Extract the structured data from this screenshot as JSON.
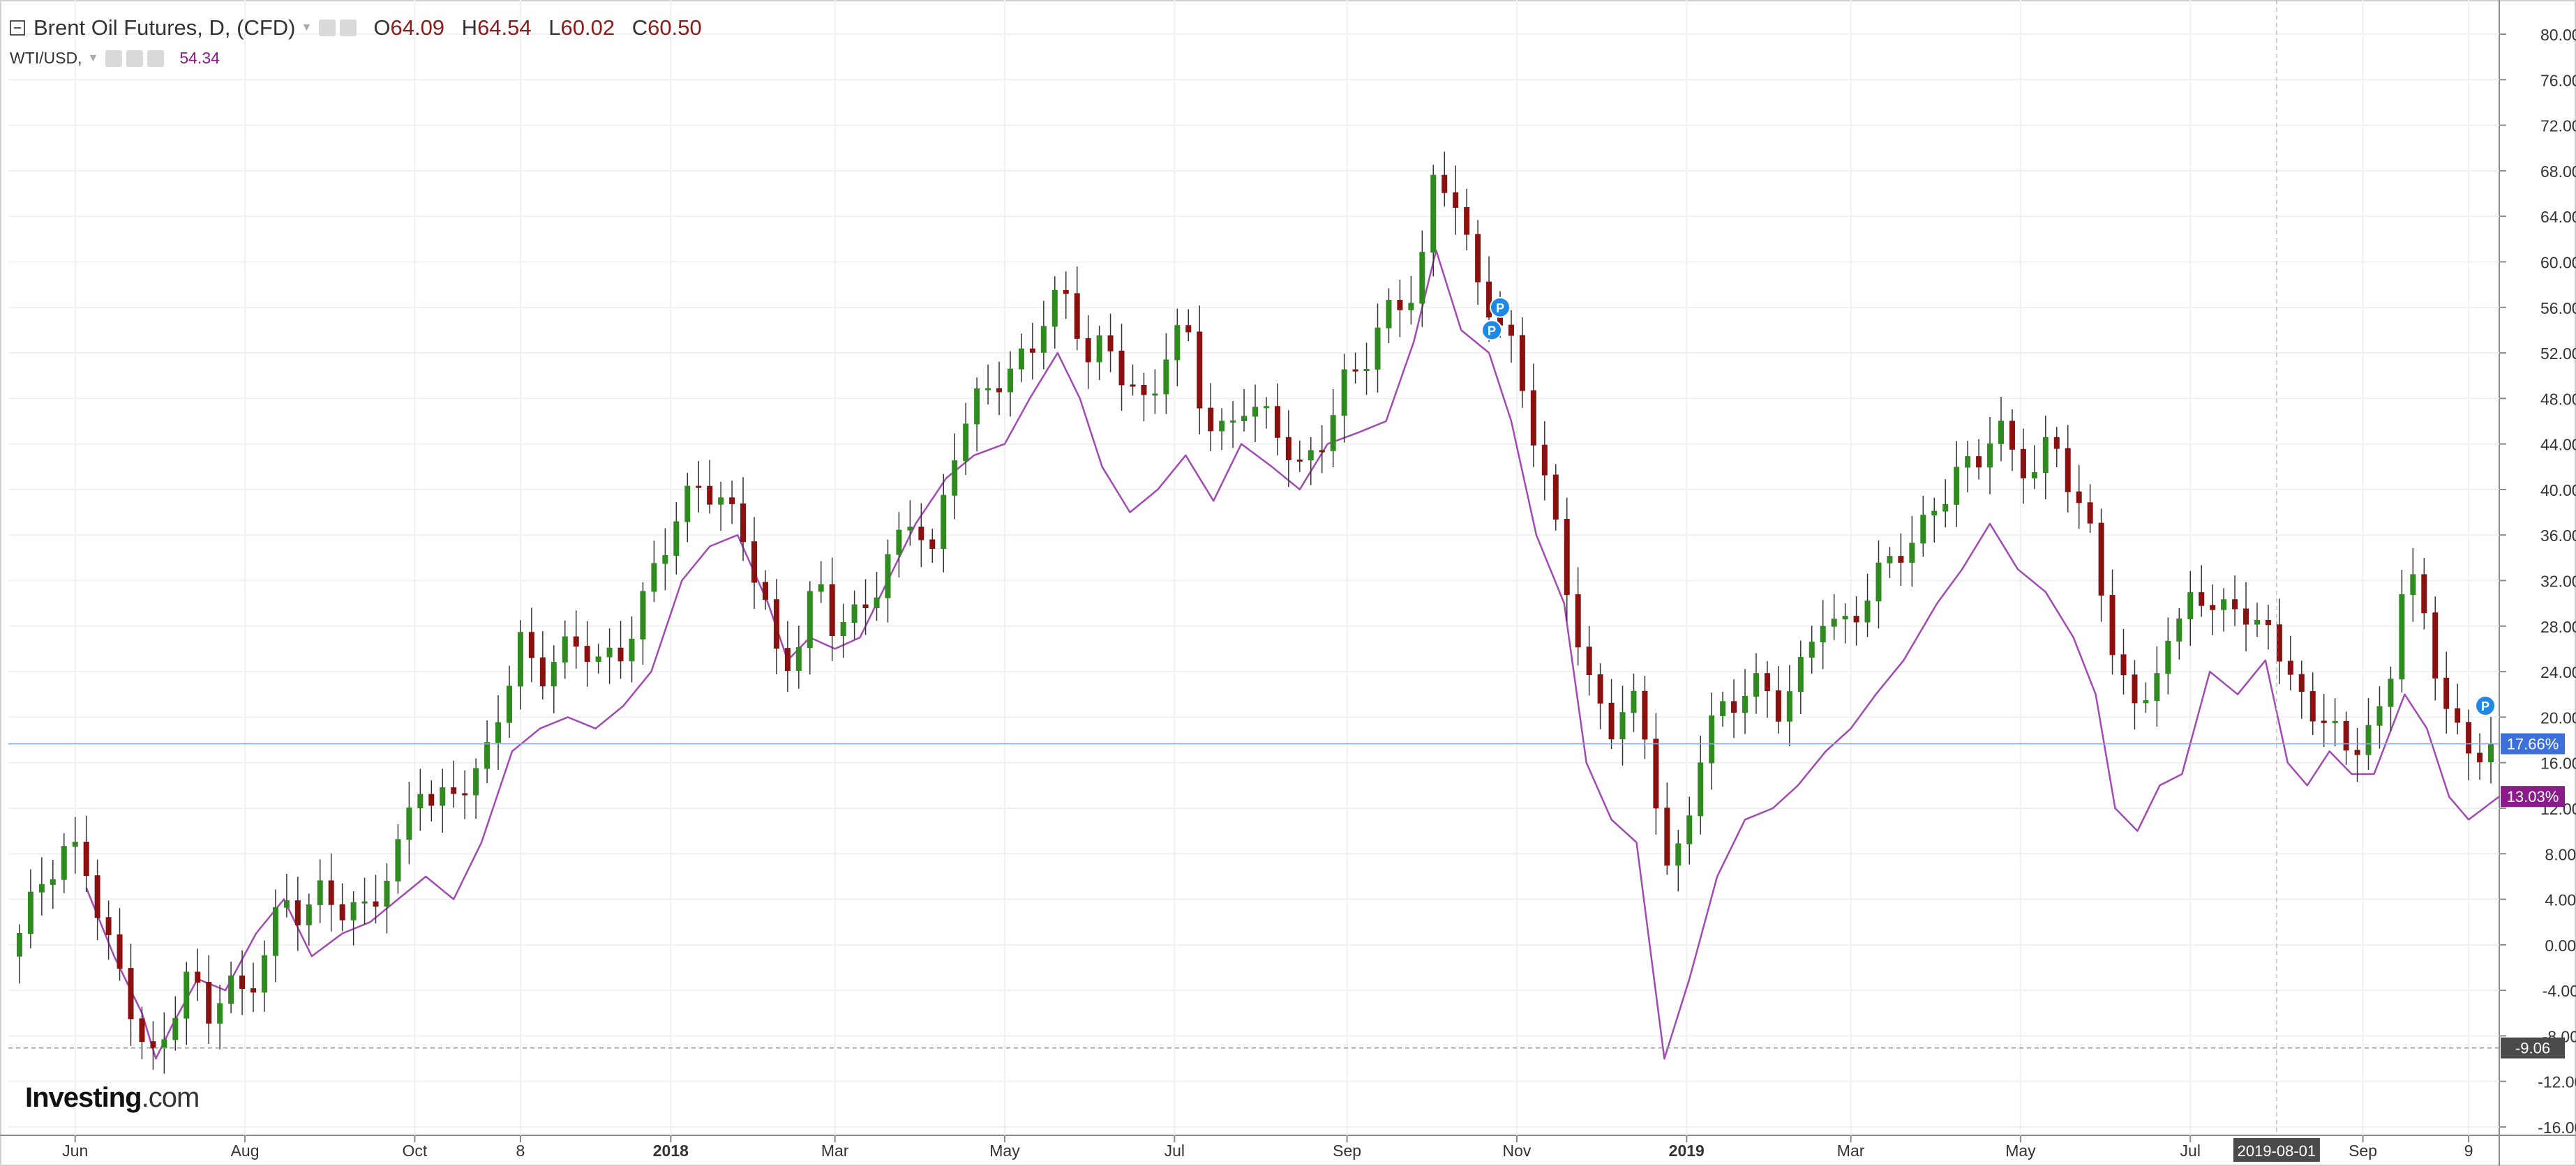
{
  "legend": {
    "title": "Brent Oil Futures, D, (CFD)",
    "open_label": "O",
    "open": "64.09",
    "high_label": "H",
    "high": "64.54",
    "low_label": "L",
    "low": "60.02",
    "close_label": "C",
    "close": "60.50",
    "compare_symbol": "WTI/USD,",
    "compare_value": "54.34"
  },
  "logo": {
    "text": "Investing",
    "suffix": ".com"
  },
  "icons": [
    "collapse-icon",
    "dropdown-caret-icon",
    "settings-icon",
    "eye-icon",
    "close-icon",
    "dividend-pin-icon"
  ],
  "chart_data": {
    "type": "line",
    "title": "Brent Oil Futures, D, (CFD)",
    "chart_style": "candlestick with comparison line",
    "y_unit": "percent change",
    "ylim": [
      -16,
      82
    ],
    "y_ticks": [
      "80.00%",
      "76.00%",
      "72.00%",
      "68.00%",
      "64.00%",
      "60.00%",
      "56.00%",
      "52.00%",
      "48.00%",
      "44.00%",
      "40.00%",
      "36.00%",
      "32.00%",
      "28.00%",
      "24.00%",
      "20.00%",
      "16.00%",
      "12.00%",
      "8.00%",
      "4.00%",
      "0.00%",
      "-4.00%",
      "-8.00%",
      "-12.00%",
      "-16.00%"
    ],
    "y_tick_values": [
      80,
      76,
      72,
      68,
      64,
      60,
      56,
      52,
      48,
      44,
      40,
      36,
      32,
      28,
      24,
      20,
      16,
      12,
      8,
      4,
      0,
      -4,
      -8,
      -12,
      -16
    ],
    "x_range": [
      "2017-05-08",
      "2019-10-20"
    ],
    "x_ticks": [
      {
        "date": "2017-06-01",
        "label": "Jun"
      },
      {
        "date": "2017-08-01",
        "label": "Aug"
      },
      {
        "date": "2017-10-01",
        "label": "Oct"
      },
      {
        "date": "2017-11-08",
        "label": "8"
      },
      {
        "date": "2018-01-01",
        "label": "2018",
        "bold": true
      },
      {
        "date": "2018-03-01",
        "label": "Mar"
      },
      {
        "date": "2018-05-01",
        "label": "May"
      },
      {
        "date": "2018-07-01",
        "label": "Jul"
      },
      {
        "date": "2018-09-01",
        "label": "Sep"
      },
      {
        "date": "2018-11-01",
        "label": "Nov"
      },
      {
        "date": "2019-01-01",
        "label": "2019",
        "bold": true
      },
      {
        "date": "2019-03-01",
        "label": "Mar"
      },
      {
        "date": "2019-05-01",
        "label": "May"
      },
      {
        "date": "2019-07-01",
        "label": "Jul"
      },
      {
        "date": "2019-09-01",
        "label": "Sep"
      },
      {
        "date": "2019-10-09",
        "label": "9"
      }
    ],
    "crosshair": {
      "date": "2019-08-01",
      "label": "2019-08-01",
      "price_value": -9.06,
      "price_label": "-9.06"
    },
    "grid": true,
    "series": [
      {
        "name": "Brent Oil Futures",
        "style": "candlestick",
        "up_color": "#2e8b1e",
        "down_color": "#8b1111",
        "last_value": 17.66,
        "last_label": "17.66%",
        "last_color": "#3d6fdb",
        "points": [
          [
            "2017-05-08",
            -1
          ],
          [
            "2017-05-20",
            5
          ],
          [
            "2017-05-30",
            8
          ],
          [
            "2017-06-05",
            7
          ],
          [
            "2017-06-12",
            1
          ],
          [
            "2017-06-19",
            -3
          ],
          [
            "2017-06-25",
            -8
          ],
          [
            "2017-06-30",
            -11
          ],
          [
            "2017-07-05",
            -7
          ],
          [
            "2017-07-12",
            -3
          ],
          [
            "2017-07-18",
            -7
          ],
          [
            "2017-07-25",
            -3
          ],
          [
            "2017-08-01",
            -4
          ],
          [
            "2017-08-08",
            0
          ],
          [
            "2017-08-15",
            4
          ],
          [
            "2017-08-22",
            2
          ],
          [
            "2017-08-29",
            4
          ],
          [
            "2017-09-05",
            3
          ],
          [
            "2017-09-12",
            3
          ],
          [
            "2017-09-19",
            6
          ],
          [
            "2017-09-26",
            9
          ],
          [
            "2017-10-02",
            15
          ],
          [
            "2017-10-08",
            11
          ],
          [
            "2017-10-15",
            13
          ],
          [
            "2017-10-25",
            15
          ],
          [
            "2017-11-01",
            22
          ],
          [
            "2017-11-08",
            27
          ],
          [
            "2017-11-15",
            24
          ],
          [
            "2017-11-22",
            25
          ],
          [
            "2017-11-30",
            26
          ],
          [
            "2017-12-07",
            24
          ],
          [
            "2017-12-14",
            26
          ],
          [
            "2017-12-21",
            30
          ],
          [
            "2017-12-28",
            35
          ],
          [
            "2018-01-04",
            38
          ],
          [
            "2018-01-12",
            40
          ],
          [
            "2018-01-20",
            38
          ],
          [
            "2018-01-27",
            36
          ],
          [
            "2018-02-03",
            31
          ],
          [
            "2018-02-09",
            25
          ],
          [
            "2018-02-16",
            27
          ],
          [
            "2018-02-23",
            32
          ],
          [
            "2018-03-01",
            27
          ],
          [
            "2018-03-08",
            28
          ],
          [
            "2018-03-15",
            31
          ],
          [
            "2018-03-22",
            35
          ],
          [
            "2018-03-29",
            39
          ],
          [
            "2018-04-05",
            34
          ],
          [
            "2018-04-12",
            43
          ],
          [
            "2018-04-19",
            46
          ],
          [
            "2018-04-26",
            49
          ],
          [
            "2018-05-03",
            50
          ],
          [
            "2018-05-10",
            53
          ],
          [
            "2018-05-17",
            57
          ],
          [
            "2018-05-24",
            57
          ],
          [
            "2018-05-31",
            51
          ],
          [
            "2018-06-07",
            52
          ],
          [
            "2018-06-14",
            49
          ],
          [
            "2018-06-21",
            47
          ],
          [
            "2018-06-28",
            53
          ],
          [
            "2018-07-05",
            55
          ],
          [
            "2018-07-12",
            46
          ],
          [
            "2018-07-19",
            44
          ],
          [
            "2018-07-26",
            47
          ],
          [
            "2018-08-02",
            46
          ],
          [
            "2018-08-09",
            45
          ],
          [
            "2018-08-16",
            42
          ],
          [
            "2018-08-23",
            45
          ],
          [
            "2018-08-30",
            49
          ],
          [
            "2018-09-06",
            50
          ],
          [
            "2018-09-13",
            54
          ],
          [
            "2018-09-20",
            56
          ],
          [
            "2018-09-27",
            59
          ],
          [
            "2018-10-03",
            69
          ],
          [
            "2018-10-10",
            66
          ],
          [
            "2018-10-17",
            58
          ],
          [
            "2018-10-24",
            55
          ],
          [
            "2018-10-31",
            51
          ],
          [
            "2018-11-07",
            45
          ],
          [
            "2018-11-14",
            38
          ],
          [
            "2018-11-21",
            30
          ],
          [
            "2018-11-28",
            22
          ],
          [
            "2018-12-05",
            19
          ],
          [
            "2018-12-12",
            21
          ],
          [
            "2018-12-19",
            16
          ],
          [
            "2018-12-26",
            5
          ],
          [
            "2018-12-31",
            10
          ],
          [
            "2019-01-07",
            19
          ],
          [
            "2019-01-14",
            21
          ],
          [
            "2019-01-21",
            22
          ],
          [
            "2019-01-28",
            22
          ],
          [
            "2019-02-04",
            20
          ],
          [
            "2019-02-11",
            24
          ],
          [
            "2019-02-18",
            30
          ],
          [
            "2019-02-25",
            28
          ],
          [
            "2019-03-04",
            30
          ],
          [
            "2019-03-11",
            32
          ],
          [
            "2019-03-18",
            34
          ],
          [
            "2019-03-25",
            35
          ],
          [
            "2019-04-01",
            39
          ],
          [
            "2019-04-08",
            42
          ],
          [
            "2019-04-15",
            43
          ],
          [
            "2019-04-22",
            46
          ],
          [
            "2019-04-29",
            42
          ],
          [
            "2019-05-06",
            41
          ],
          [
            "2019-05-13",
            44
          ],
          [
            "2019-05-20",
            40
          ],
          [
            "2019-05-27",
            36
          ],
          [
            "2019-06-03",
            27
          ],
          [
            "2019-06-10",
            20
          ],
          [
            "2019-06-17",
            23
          ],
          [
            "2019-06-24",
            25
          ],
          [
            "2019-07-01",
            32
          ],
          [
            "2019-07-08",
            28
          ],
          [
            "2019-07-15",
            33
          ],
          [
            "2019-07-22",
            27
          ],
          [
            "2019-07-29",
            29
          ],
          [
            "2019-08-05",
            22
          ],
          [
            "2019-08-12",
            21
          ],
          [
            "2019-08-19",
            19
          ],
          [
            "2019-08-26",
            18
          ],
          [
            "2019-09-02",
            19
          ],
          [
            "2019-09-09",
            21
          ],
          [
            "2019-09-16",
            33
          ],
          [
            "2019-09-23",
            28
          ],
          [
            "2019-09-30",
            21
          ],
          [
            "2019-10-07",
            17
          ],
          [
            "2019-10-14",
            18
          ],
          [
            "2019-10-20",
            17.66
          ]
        ]
      },
      {
        "name": "WTI/USD",
        "style": "line",
        "color": "#a24ab4",
        "last_value": 13.03,
        "last_label": "13.03%",
        "last_color": "#8b1a8b",
        "points": [
          [
            "2017-06-05",
            5
          ],
          [
            "2017-06-15",
            -1
          ],
          [
            "2017-06-25",
            -6
          ],
          [
            "2017-06-30",
            -10
          ],
          [
            "2017-07-06",
            -7
          ],
          [
            "2017-07-15",
            -3
          ],
          [
            "2017-07-25",
            -4
          ],
          [
            "2017-08-05",
            1
          ],
          [
            "2017-08-15",
            4
          ],
          [
            "2017-08-25",
            -1
          ],
          [
            "2017-09-05",
            1
          ],
          [
            "2017-09-15",
            2
          ],
          [
            "2017-09-25",
            4
          ],
          [
            "2017-10-05",
            6
          ],
          [
            "2017-10-15",
            4
          ],
          [
            "2017-10-25",
            9
          ],
          [
            "2017-11-05",
            17
          ],
          [
            "2017-11-15",
            19
          ],
          [
            "2017-11-25",
            20
          ],
          [
            "2017-12-05",
            19
          ],
          [
            "2017-12-15",
            21
          ],
          [
            "2017-12-25",
            24
          ],
          [
            "2018-01-05",
            32
          ],
          [
            "2018-01-15",
            35
          ],
          [
            "2018-01-25",
            36
          ],
          [
            "2018-02-05",
            30
          ],
          [
            "2018-02-12",
            25
          ],
          [
            "2018-02-20",
            27
          ],
          [
            "2018-03-01",
            26
          ],
          [
            "2018-03-10",
            27
          ],
          [
            "2018-03-20",
            32
          ],
          [
            "2018-03-30",
            37
          ],
          [
            "2018-04-10",
            41
          ],
          [
            "2018-04-20",
            43
          ],
          [
            "2018-05-01",
            44
          ],
          [
            "2018-05-10",
            48
          ],
          [
            "2018-05-20",
            52
          ],
          [
            "2018-05-28",
            48
          ],
          [
            "2018-06-05",
            42
          ],
          [
            "2018-06-15",
            38
          ],
          [
            "2018-06-25",
            40
          ],
          [
            "2018-07-05",
            43
          ],
          [
            "2018-07-15",
            39
          ],
          [
            "2018-07-25",
            44
          ],
          [
            "2018-08-05",
            42
          ],
          [
            "2018-08-15",
            40
          ],
          [
            "2018-08-25",
            44
          ],
          [
            "2018-09-05",
            45
          ],
          [
            "2018-09-15",
            46
          ],
          [
            "2018-09-25",
            53
          ],
          [
            "2018-10-03",
            61
          ],
          [
            "2018-10-12",
            54
          ],
          [
            "2018-10-22",
            52
          ],
          [
            "2018-10-30",
            46
          ],
          [
            "2018-11-08",
            36
          ],
          [
            "2018-11-18",
            30
          ],
          [
            "2018-11-26",
            16
          ],
          [
            "2018-12-05",
            11
          ],
          [
            "2018-12-14",
            9
          ],
          [
            "2018-12-24",
            -10
          ],
          [
            "2019-01-02",
            -3
          ],
          [
            "2019-01-12",
            6
          ],
          [
            "2019-01-22",
            11
          ],
          [
            "2019-02-01",
            12
          ],
          [
            "2019-02-10",
            14
          ],
          [
            "2019-02-20",
            17
          ],
          [
            "2019-03-01",
            19
          ],
          [
            "2019-03-10",
            22
          ],
          [
            "2019-03-20",
            25
          ],
          [
            "2019-04-01",
            30
          ],
          [
            "2019-04-10",
            33
          ],
          [
            "2019-04-20",
            37
          ],
          [
            "2019-04-30",
            33
          ],
          [
            "2019-05-10",
            31
          ],
          [
            "2019-05-20",
            27
          ],
          [
            "2019-05-28",
            22
          ],
          [
            "2019-06-04",
            12
          ],
          [
            "2019-06-12",
            10
          ],
          [
            "2019-06-20",
            14
          ],
          [
            "2019-06-28",
            15
          ],
          [
            "2019-07-08",
            24
          ],
          [
            "2019-07-18",
            22
          ],
          [
            "2019-07-28",
            25
          ],
          [
            "2019-08-05",
            16
          ],
          [
            "2019-08-12",
            14
          ],
          [
            "2019-08-20",
            17
          ],
          [
            "2019-08-28",
            15
          ],
          [
            "2019-09-05",
            15
          ],
          [
            "2019-09-16",
            22
          ],
          [
            "2019-09-24",
            19
          ],
          [
            "2019-10-02",
            13
          ],
          [
            "2019-10-09",
            11
          ],
          [
            "2019-10-20",
            13.03
          ]
        ]
      }
    ],
    "markers": [
      {
        "date": "2018-10-26",
        "value": 56,
        "label": "P"
      },
      {
        "date": "2018-10-23",
        "value": 54,
        "label": "P"
      },
      {
        "date": "2019-10-15",
        "value": 21,
        "label": "P"
      }
    ]
  }
}
